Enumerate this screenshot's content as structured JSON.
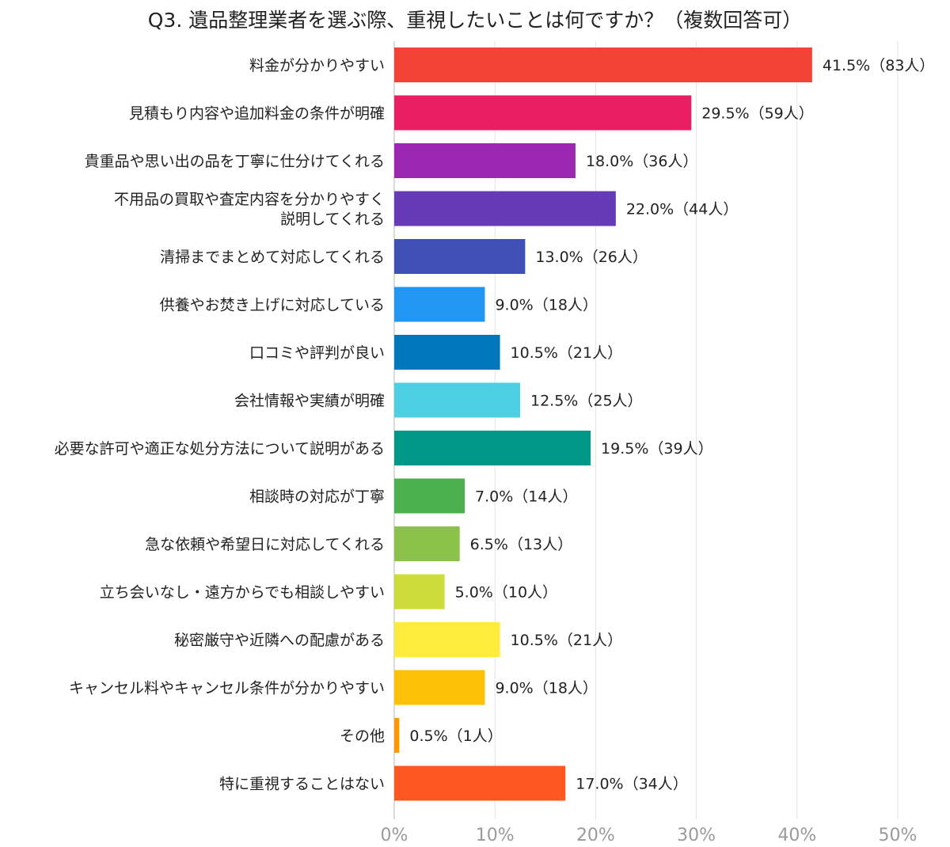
{
  "chart_data": {
    "type": "bar",
    "orientation": "horizontal",
    "title": "Q3. 遺品整理業者を選ぶ際、重視したいことは何ですか？（複数回答可）",
    "xlabel": "",
    "ylabel": "",
    "xlim": [
      0,
      50
    ],
    "x_ticks": [
      "0%",
      "10%",
      "20%",
      "30%",
      "40%",
      "50%"
    ],
    "grid": "vertical",
    "legend": "none",
    "categories": [
      [
        "料金が分かりやすい"
      ],
      [
        "見積もり内容や追加料金の条件が明確"
      ],
      [
        "貴重品や思い出の品を丁寧に仕分けてくれる"
      ],
      [
        "不用品の買取や査定内容を分かりやすく",
        "説明してくれる"
      ],
      [
        "清掃までまとめて対応してくれる"
      ],
      [
        "供養やお焚き上げに対応している"
      ],
      [
        "口コミや評判が良い"
      ],
      [
        "会社情報や実績が明確"
      ],
      [
        "必要な許可や適正な処分方法について説明がある"
      ],
      [
        "相談時の対応が丁寧"
      ],
      [
        "急な依頼や希望日に対応してくれる"
      ],
      [
        "立ち会いなし・遠方からでも相談しやすい"
      ],
      [
        "秘密厳守や近隣への配慮がある"
      ],
      [
        "キャンセル料やキャンセル条件が分かりやすい"
      ],
      [
        "その他"
      ],
      [
        "特に重視することはない"
      ]
    ],
    "values": [
      41.5,
      29.5,
      18.0,
      22.0,
      13.0,
      9.0,
      10.5,
      12.5,
      19.5,
      7.0,
      6.5,
      5.0,
      10.5,
      9.0,
      0.5,
      17.0
    ],
    "value_labels": [
      "41.5%（83人）",
      "29.5%（59人）",
      "18.0%（36人）",
      "22.0%（44人）",
      "13.0%（26人）",
      "9.0%（18人）",
      "10.5%（21人）",
      "12.5%（25人）",
      "19.5%（39人）",
      "7.0%（14人）",
      "6.5%（13人）",
      "5.0%（10人）",
      "10.5%（21人）",
      "9.0%（18人）",
      "0.5%（1人）",
      "17.0%（34人）"
    ],
    "colors": [
      "#f44336",
      "#e91e63",
      "#9c27b0",
      "#673ab7",
      "#3f51b5",
      "#2196f3",
      "#0277bd",
      "#4dd0e1",
      "#009688",
      "#4caf50",
      "#8bc34a",
      "#cddc39",
      "#ffeb3b",
      "#ffc107",
      "#ff9800",
      "#ff5722"
    ]
  }
}
